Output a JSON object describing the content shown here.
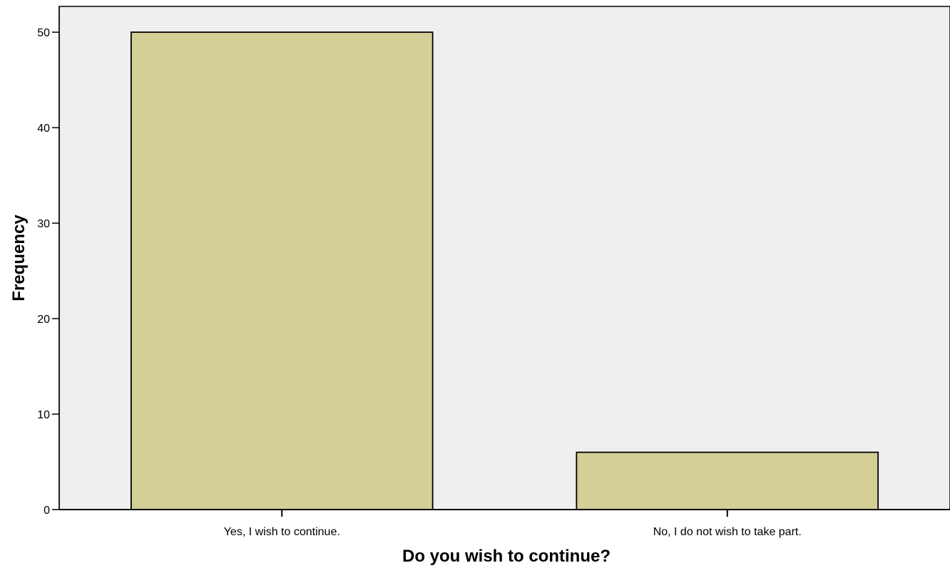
{
  "chart_data": {
    "type": "bar",
    "categories": [
      "Yes, I wish to continue.",
      "No, I do not wish to take part."
    ],
    "values": [
      50,
      6
    ],
    "title": "",
    "xlabel": "Do you wish to continue?",
    "ylabel": "Frequency",
    "ylim": [
      0,
      52.7
    ],
    "yticks": [
      0,
      10,
      20,
      30,
      40,
      50
    ],
    "grid": false,
    "legend": "none",
    "colors": {
      "plot_background": "#efefef",
      "bar_fill": "#d4ce97",
      "bar_stroke": "#000000",
      "axis": "#000000"
    }
  }
}
